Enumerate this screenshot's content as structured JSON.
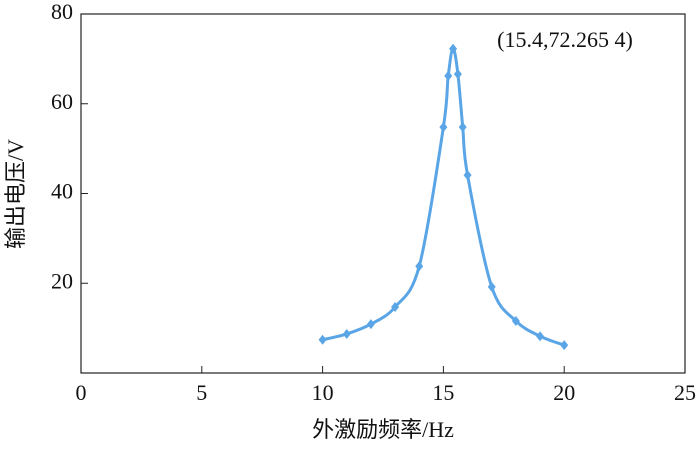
{
  "chart_data": {
    "type": "line",
    "x_label": "外激励频率/Hz",
    "y_label": "输出电压/V",
    "annotation": "(15.4,72.265 4)",
    "x": [
      10,
      11,
      12,
      13,
      14,
      15,
      15.2,
      15.4,
      15.6,
      15.8,
      16,
      17,
      18,
      19,
      20
    ],
    "series": [
      {
        "color": "#5aa5e6",
        "marker": "diamond",
        "values": [
          7.4,
          8.7,
          10.9,
          14.7,
          23.8,
          54.8,
          66.2,
          72.2654,
          66.6,
          54.8,
          44.1,
          19.2,
          11.6,
          8.2,
          6.2
        ]
      }
    ],
    "xlim": [
      0,
      25
    ],
    "xticks": [
      0,
      5,
      10,
      15,
      20,
      25
    ],
    "ylim": [
      0,
      80
    ],
    "yticks": [
      20,
      40,
      60,
      80
    ],
    "smooth": true
  }
}
